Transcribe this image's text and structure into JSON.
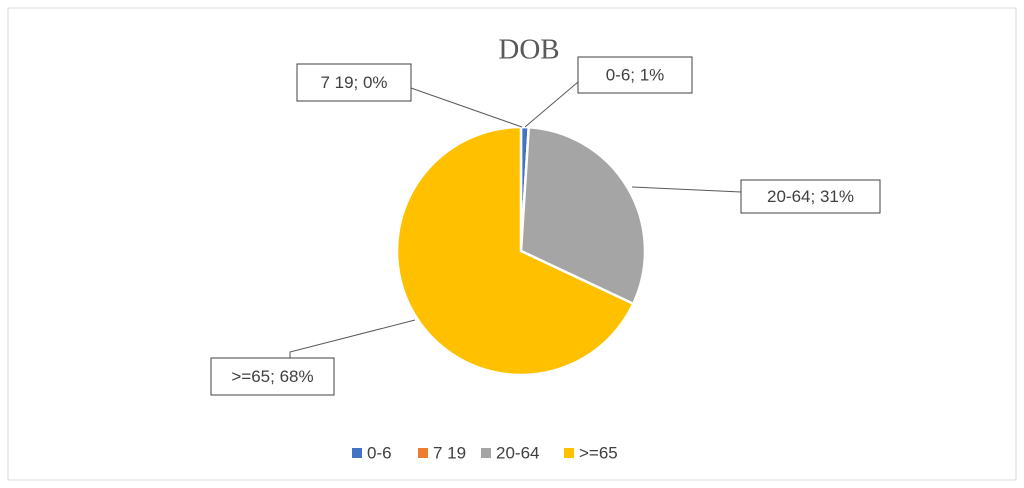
{
  "chart_data": {
    "type": "pie",
    "title": "DOB",
    "categories": [
      "0-6",
      "7  19",
      "20-64",
      ">=65"
    ],
    "values": [
      1,
      0,
      31,
      68
    ],
    "value_labels": [
      "0-6; 1%",
      "7  19; 0%",
      "20-64; 31%",
      ">=65; 68%"
    ],
    "colors": [
      "#4472c4",
      "#ed7d31",
      "#a5a5a5",
      "#ffc000"
    ],
    "legend": "bottom"
  }
}
